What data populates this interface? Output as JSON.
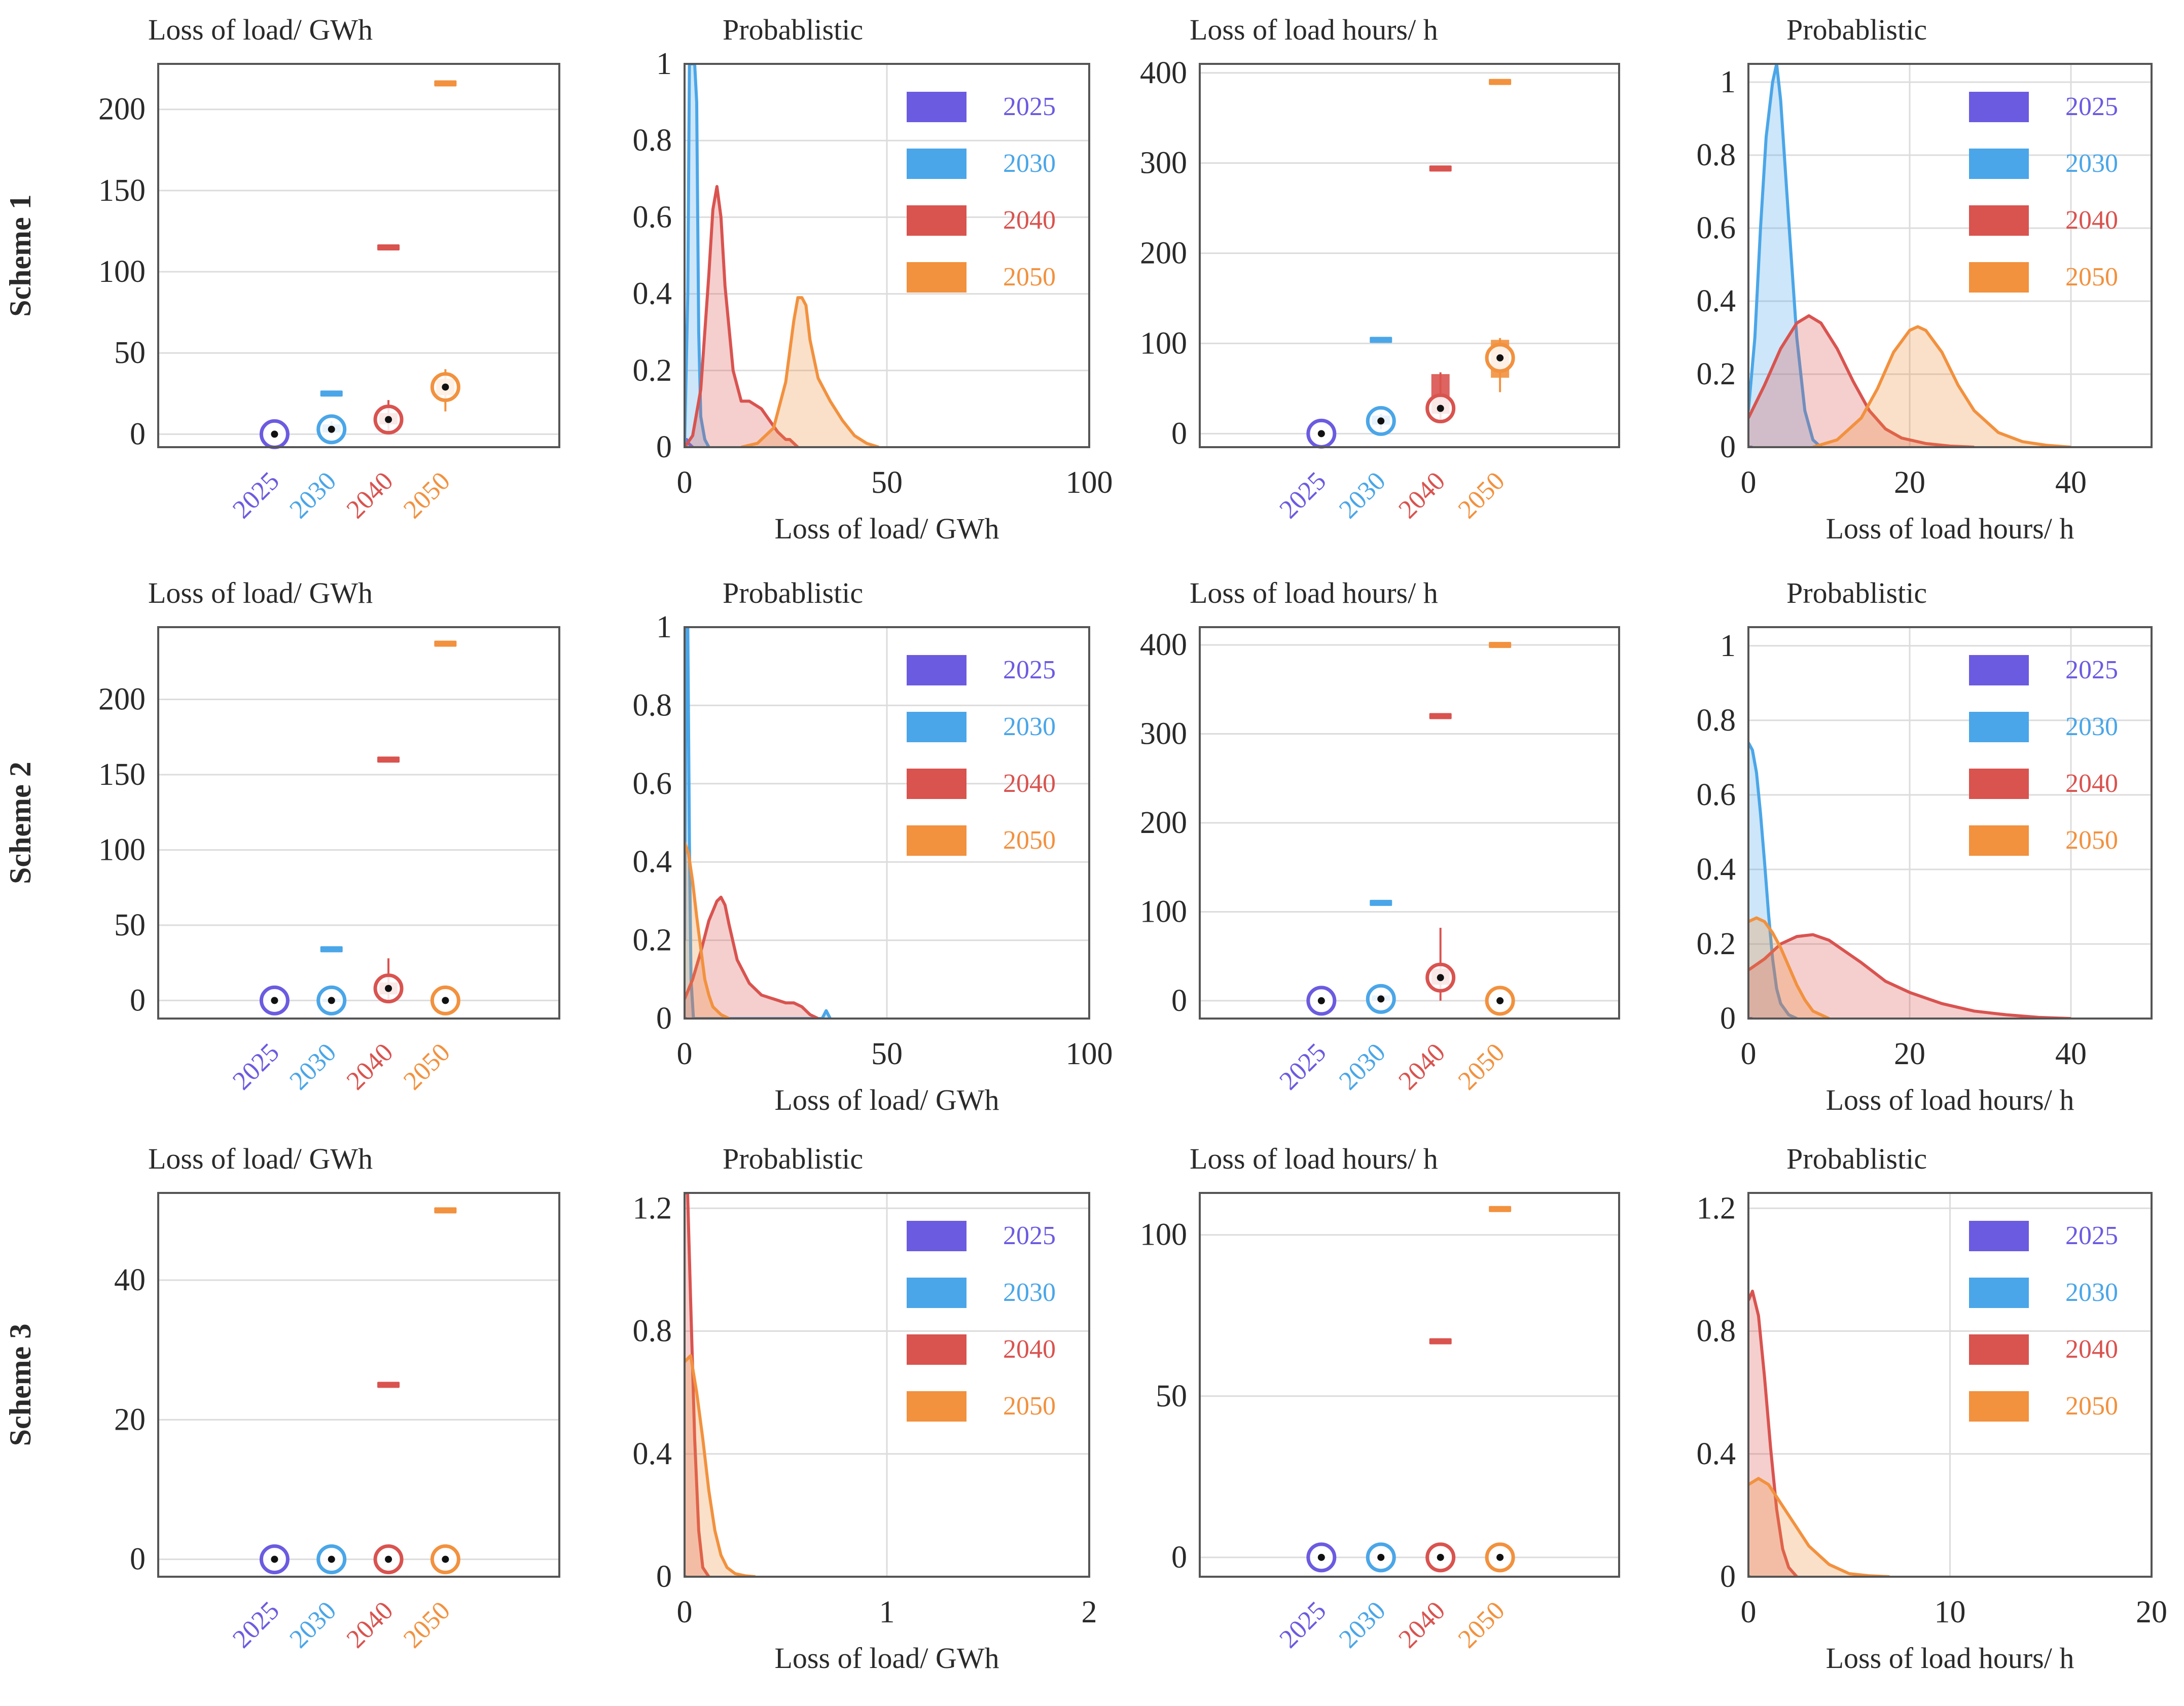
{
  "colors": {
    "2025": "#6b5be0",
    "2030": "#4aa6e8",
    "2040": "#d9534f",
    "2050": "#f2913e",
    "grid": "#dcdcdc",
    "axis": "#555555"
  },
  "years": [
    "2025",
    "2030",
    "2040",
    "2050"
  ],
  "chart_data": [
    {
      "id": "s1-box-lol",
      "row": 0,
      "col": 0,
      "type": "box",
      "row_label": "Scheme 1",
      "title": "Loss of load/ GWh",
      "ylim": [
        -8,
        228
      ],
      "yticks": [
        0,
        50,
        100,
        150,
        200
      ],
      "categories": [
        "2025",
        "2030",
        "2040",
        "2050"
      ],
      "medians": [
        0,
        3,
        9,
        29
      ],
      "q1": [
        0,
        1,
        6,
        24
      ],
      "q3": [
        0,
        6,
        13,
        34
      ],
      "whisker_low": [
        0,
        0,
        2,
        14
      ],
      "whisker_high": [
        0,
        8,
        21,
        40
      ],
      "outliers": [
        null,
        25,
        115,
        216
      ]
    },
    {
      "id": "s1-pdf-lol",
      "row": 0,
      "col": 1,
      "type": "area",
      "title": "Probablistic",
      "xlabel": "Loss of load/ GWh",
      "xlim": [
        0,
        100
      ],
      "ylim": [
        0,
        1
      ],
      "xticks": [
        0,
        50,
        100
      ],
      "yticks": [
        0,
        0.2,
        0.4,
        0.6,
        0.8,
        1
      ],
      "legend": [
        "2025",
        "2030",
        "2040",
        "2050"
      ],
      "legend_position": "top-right",
      "series": [
        {
          "name": "2025",
          "x": [
            0,
            0.5,
            1,
            2
          ],
          "y": [
            0,
            0.02,
            0.01,
            0
          ]
        },
        {
          "name": "2030",
          "x": [
            0,
            0.8,
            1.2,
            2,
            2.5,
            3,
            3.5,
            4,
            5,
            6
          ],
          "y": [
            0,
            0.4,
            1,
            1,
            1,
            0.9,
            0.3,
            0.08,
            0.02,
            0
          ]
        },
        {
          "name": "2040",
          "x": [
            0,
            2,
            4,
            6,
            7,
            8,
            9,
            10,
            12,
            14,
            16,
            19,
            21,
            23,
            25,
            26,
            28
          ],
          "y": [
            0,
            0.03,
            0.15,
            0.45,
            0.62,
            0.68,
            0.6,
            0.42,
            0.2,
            0.12,
            0.12,
            0.1,
            0.07,
            0.04,
            0.02,
            0.02,
            0
          ]
        },
        {
          "name": "2050",
          "x": [
            14,
            18,
            22,
            25,
            27,
            28,
            29,
            30,
            31,
            33,
            36,
            39,
            42,
            45,
            48
          ],
          "y": [
            0,
            0.01,
            0.05,
            0.17,
            0.33,
            0.39,
            0.39,
            0.37,
            0.28,
            0.18,
            0.12,
            0.07,
            0.03,
            0.01,
            0
          ]
        }
      ]
    },
    {
      "id": "s1-box-loh",
      "row": 0,
      "col": 2,
      "type": "box",
      "title": "Loss of load hours/ h",
      "ylim": [
        -15,
        410
      ],
      "yticks": [
        0,
        100,
        200,
        300,
        400
      ],
      "categories": [
        "2025",
        "2030",
        "2040",
        "2050"
      ],
      "medians": [
        0,
        14,
        28,
        84
      ],
      "q1": [
        0,
        10,
        22,
        62
      ],
      "q3": [
        0,
        20,
        66,
        104
      ],
      "whisker_low": [
        0,
        5,
        15,
        46
      ],
      "whisker_high": [
        0,
        22,
        68,
        106
      ],
      "outliers": [
        null,
        104,
        294,
        390
      ]
    },
    {
      "id": "s1-pdf-loh",
      "row": 0,
      "col": 3,
      "type": "area",
      "title": "Probablistic",
      "xlabel": "Loss of load hours/ h",
      "xlim": [
        0,
        50
      ],
      "ylim": [
        0,
        1.05
      ],
      "xticks": [
        0,
        20,
        40
      ],
      "yticks": [
        0,
        0.2,
        0.4,
        0.6,
        0.8,
        1
      ],
      "legend": [
        "2025",
        "2030",
        "2040",
        "2050"
      ],
      "legend_position": "top-right",
      "series": [
        {
          "name": "2025",
          "x": [
            0,
            0.5
          ],
          "y": [
            0,
            0
          ]
        },
        {
          "name": "2030",
          "x": [
            0,
            0.8,
            1.5,
            2.2,
            3,
            3.5,
            4,
            5,
            6,
            7,
            8,
            9
          ],
          "y": [
            0.1,
            0.3,
            0.6,
            0.85,
            1.0,
            1.05,
            0.95,
            0.62,
            0.3,
            0.1,
            0.02,
            0
          ]
        },
        {
          "name": "2040",
          "x": [
            0,
            2,
            4,
            6,
            7.5,
            9,
            11,
            13,
            15,
            17,
            19,
            22,
            25,
            28
          ],
          "y": [
            0.08,
            0.17,
            0.27,
            0.34,
            0.36,
            0.34,
            0.27,
            0.18,
            0.1,
            0.05,
            0.025,
            0.01,
            0.003,
            0
          ]
        },
        {
          "name": "2050",
          "x": [
            8,
            11,
            14,
            16,
            18,
            20,
            21,
            22,
            24,
            26,
            28,
            31,
            34,
            37,
            40
          ],
          "y": [
            0,
            0.02,
            0.08,
            0.16,
            0.26,
            0.32,
            0.33,
            0.32,
            0.26,
            0.17,
            0.1,
            0.04,
            0.015,
            0.005,
            0
          ]
        }
      ]
    },
    {
      "id": "s2-box-lol",
      "row": 1,
      "col": 0,
      "type": "box",
      "row_label": "Scheme 2",
      "title": "Loss of load/ GWh",
      "ylim": [
        -12,
        248
      ],
      "yticks": [
        0,
        50,
        100,
        150,
        200
      ],
      "categories": [
        "2025",
        "2030",
        "2040",
        "2050"
      ],
      "medians": [
        0,
        0,
        8,
        0
      ],
      "q1": [
        0,
        0,
        4,
        0
      ],
      "q3": [
        0,
        1,
        12,
        0
      ],
      "whisker_low": [
        0,
        0,
        0,
        0
      ],
      "whisker_high": [
        0,
        2,
        28,
        0
      ],
      "outliers": [
        null,
        34,
        160,
        237
      ]
    },
    {
      "id": "s2-pdf-lol",
      "row": 1,
      "col": 1,
      "type": "area",
      "title": "Probablistic",
      "xlabel": "Loss of load/ GWh",
      "xlim": [
        0,
        100
      ],
      "ylim": [
        0,
        1
      ],
      "xticks": [
        0,
        50,
        100
      ],
      "yticks": [
        0,
        0.2,
        0.4,
        0.6,
        0.8,
        1
      ],
      "legend": [
        "2025",
        "2030",
        "2040",
        "2050"
      ],
      "legend_position": "top-right",
      "series": [
        {
          "name": "2025",
          "x": [
            0,
            0.5
          ],
          "y": [
            0,
            0
          ]
        },
        {
          "name": "2030",
          "x": [
            0,
            0.4,
            0.8,
            1.2,
            1.6,
            2.2,
            34,
            35,
            36
          ],
          "y": [
            0.2,
            1,
            1,
            0.45,
            0.1,
            0,
            0,
            0.02,
            0
          ]
        },
        {
          "name": "2040",
          "x": [
            0,
            2,
            4,
            6,
            8,
            9,
            10,
            11,
            13,
            16,
            19,
            22,
            25,
            27,
            29,
            31,
            33
          ],
          "y": [
            0.05,
            0.1,
            0.17,
            0.25,
            0.3,
            0.31,
            0.29,
            0.24,
            0.15,
            0.09,
            0.06,
            0.05,
            0.04,
            0.04,
            0.03,
            0.01,
            0
          ]
        },
        {
          "name": "2050",
          "x": [
            0,
            1,
            2,
            3,
            4,
            5,
            6,
            7,
            9,
            11
          ],
          "y": [
            0.45,
            0.42,
            0.35,
            0.26,
            0.18,
            0.1,
            0.06,
            0.03,
            0.01,
            0
          ]
        }
      ]
    },
    {
      "id": "s2-box-loh",
      "row": 1,
      "col": 2,
      "type": "box",
      "title": "Loss of load hours/ h",
      "ylim": [
        -20,
        420
      ],
      "yticks": [
        0,
        100,
        200,
        300,
        400
      ],
      "categories": [
        "2025",
        "2030",
        "2040",
        "2050"
      ],
      "medians": [
        0,
        2,
        26,
        0
      ],
      "q1": [
        0,
        0,
        18,
        0
      ],
      "q3": [
        0,
        6,
        36,
        0
      ],
      "whisker_low": [
        0,
        0,
        0,
        0
      ],
      "whisker_high": [
        0,
        8,
        82,
        0
      ],
      "outliers": [
        null,
        110,
        320,
        400
      ]
    },
    {
      "id": "s2-pdf-loh",
      "row": 1,
      "col": 3,
      "type": "area",
      "title": "Probablistic",
      "xlabel": "Loss of load hours/ h",
      "xlim": [
        0,
        50
      ],
      "ylim": [
        0,
        1.05
      ],
      "xticks": [
        0,
        20,
        40
      ],
      "yticks": [
        0,
        0.2,
        0.4,
        0.6,
        0.8,
        1
      ],
      "legend": [
        "2025",
        "2030",
        "2040",
        "2050"
      ],
      "legend_position": "top-right",
      "series": [
        {
          "name": "2025",
          "x": [
            0,
            0.5
          ],
          "y": [
            0,
            0
          ]
        },
        {
          "name": "2030",
          "x": [
            0,
            0.5,
            1,
            1.5,
            2,
            2.5,
            3,
            3.5,
            4,
            5,
            6
          ],
          "y": [
            0.74,
            0.72,
            0.66,
            0.55,
            0.42,
            0.28,
            0.16,
            0.08,
            0.04,
            0.01,
            0
          ]
        },
        {
          "name": "2040",
          "x": [
            0,
            2,
            4,
            6,
            8,
            10,
            12,
            14,
            17,
            20,
            24,
            28,
            32,
            36,
            40
          ],
          "y": [
            0.13,
            0.16,
            0.2,
            0.22,
            0.225,
            0.21,
            0.18,
            0.15,
            0.1,
            0.07,
            0.04,
            0.02,
            0.01,
            0.003,
            0
          ]
        },
        {
          "name": "2050",
          "x": [
            0,
            1,
            2,
            3,
            4,
            5,
            6,
            7,
            8,
            9,
            10
          ],
          "y": [
            0.26,
            0.27,
            0.26,
            0.23,
            0.19,
            0.14,
            0.09,
            0.05,
            0.02,
            0.01,
            0
          ]
        }
      ]
    },
    {
      "id": "s3-box-lol",
      "row": 2,
      "col": 0,
      "type": "box",
      "row_label": "Scheme 3",
      "title": "Loss of load/ GWh",
      "ylim": [
        -2.5,
        52.5
      ],
      "yticks": [
        0,
        20,
        40
      ],
      "categories": [
        "2025",
        "2030",
        "2040",
        "2050"
      ],
      "medians": [
        0,
        0,
        0,
        0
      ],
      "q1": [
        0,
        0,
        0,
        0
      ],
      "q3": [
        0,
        0,
        0,
        0
      ],
      "whisker_low": [
        0,
        0,
        0,
        0
      ],
      "whisker_high": [
        0,
        0,
        0,
        0
      ],
      "outliers": [
        null,
        null,
        25,
        50
      ]
    },
    {
      "id": "s3-pdf-lol",
      "row": 2,
      "col": 1,
      "type": "area",
      "title": "Probablistic",
      "xlabel": "Loss of load/ GWh",
      "xlim": [
        0,
        2
      ],
      "ylim": [
        0,
        1.25
      ],
      "xticks": [
        0,
        1,
        2
      ],
      "yticks": [
        0,
        0.4,
        0.8,
        1.2
      ],
      "legend": [
        "2025",
        "2030",
        "2040",
        "2050"
      ],
      "legend_position": "top-right",
      "series": [
        {
          "name": "2025",
          "x": [
            0,
            0.01
          ],
          "y": [
            0,
            0
          ]
        },
        {
          "name": "2030",
          "x": [
            0,
            0.01
          ],
          "y": [
            0,
            0
          ]
        },
        {
          "name": "2040",
          "x": [
            0,
            0.015,
            0.03,
            0.05,
            0.07,
            0.09,
            0.12
          ],
          "y": [
            1.25,
            1.25,
            0.9,
            0.45,
            0.15,
            0.03,
            0
          ]
        },
        {
          "name": "2050",
          "x": [
            0,
            0.03,
            0.06,
            0.09,
            0.12,
            0.15,
            0.18,
            0.21,
            0.25,
            0.3,
            0.35
          ],
          "y": [
            0.7,
            0.72,
            0.6,
            0.45,
            0.28,
            0.15,
            0.07,
            0.03,
            0.01,
            0.003,
            0
          ]
        }
      ]
    },
    {
      "id": "s3-box-loh",
      "row": 2,
      "col": 2,
      "type": "box",
      "title": "Loss of load hours/ h",
      "ylim": [
        -6,
        113
      ],
      "yticks": [
        0,
        50,
        100
      ],
      "categories": [
        "2025",
        "2030",
        "2040",
        "2050"
      ],
      "medians": [
        0,
        0,
        0,
        0
      ],
      "q1": [
        0,
        0,
        0,
        0
      ],
      "q3": [
        0,
        0,
        0,
        0
      ],
      "whisker_low": [
        0,
        0,
        0,
        0
      ],
      "whisker_high": [
        0,
        0,
        0,
        0
      ],
      "outliers": [
        null,
        null,
        67,
        108
      ]
    },
    {
      "id": "s3-pdf-loh",
      "row": 2,
      "col": 3,
      "type": "area",
      "title": "Probablistic",
      "xlabel": "Loss of load hours/ h",
      "xlim": [
        0,
        20
      ],
      "ylim": [
        0,
        1.25
      ],
      "xticks": [
        0,
        10,
        20
      ],
      "yticks": [
        0,
        0.4,
        0.8,
        1.2
      ],
      "legend": [
        "2025",
        "2030",
        "2040",
        "2050"
      ],
      "legend_position": "top-right",
      "series": [
        {
          "name": "2025",
          "x": [
            0,
            0.1
          ],
          "y": [
            0,
            0
          ]
        },
        {
          "name": "2030",
          "x": [
            0,
            0.1
          ],
          "y": [
            0,
            0
          ]
        },
        {
          "name": "2040",
          "x": [
            0,
            0.2,
            0.5,
            0.8,
            1.1,
            1.4,
            1.7,
            2,
            2.4
          ],
          "y": [
            0.9,
            0.93,
            0.85,
            0.65,
            0.42,
            0.22,
            0.09,
            0.03,
            0
          ]
        },
        {
          "name": "2050",
          "x": [
            0,
            0.5,
            1,
            1.5,
            2,
            2.5,
            3,
            3.5,
            4,
            4.5,
            5,
            6,
            7
          ],
          "y": [
            0.3,
            0.32,
            0.3,
            0.25,
            0.2,
            0.15,
            0.1,
            0.07,
            0.04,
            0.025,
            0.01,
            0.003,
            0
          ]
        }
      ]
    }
  ]
}
